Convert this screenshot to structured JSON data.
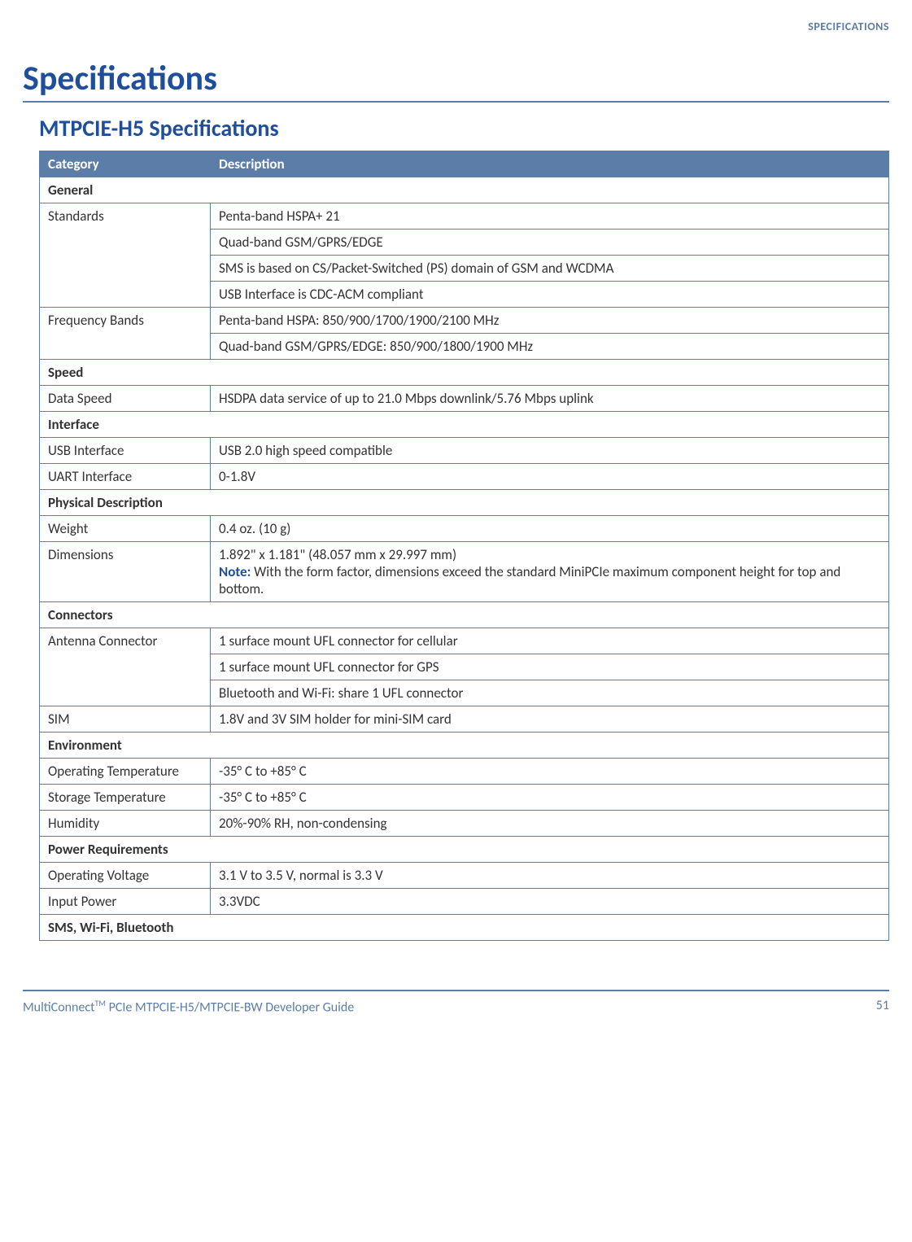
{
  "headerRight": "SPECIFICATIONS",
  "title": "Specifications",
  "subtitle": "MTPCIE-H5 Specifications",
  "columns": [
    "Category",
    "Description"
  ],
  "colors": {
    "accent": "#1f4e9b",
    "tableBorder": "#5b7da8",
    "headerBg": "#5b7da8",
    "headerText": "#ffffff"
  },
  "sections": [
    {
      "heading": "General",
      "rows": [
        {
          "cat": "Standards",
          "vals": [
            "Penta-band HSPA+ 21",
            "Quad-band GSM/GPRS/EDGE",
            "SMS is based on CS/Packet-Switched (PS) domain of GSM and WCDMA",
            "USB Interface is CDC-ACM compliant"
          ]
        },
        {
          "cat": "Frequency Bands",
          "vals": [
            "Penta-band HSPA: 850/900/1700/1900/2100 MHz",
            "Quad-band GSM/GPRS/EDGE: 850/900/1800/1900 MHz"
          ]
        }
      ]
    },
    {
      "heading": "Speed",
      "rows": [
        {
          "cat": "Data Speed",
          "vals": [
            "HSDPA data service of up to 21.0 Mbps downlink/5.76 Mbps uplink"
          ]
        }
      ]
    },
    {
      "heading": "Interface",
      "rows": [
        {
          "cat": "USB Interface",
          "vals": [
            "USB 2.0 high speed compatible"
          ]
        },
        {
          "cat": "UART Interface",
          "vals": [
            "0-1.8V"
          ]
        }
      ]
    },
    {
      "heading": "Physical Description",
      "rows": [
        {
          "cat": "Weight",
          "vals": [
            "0.4 oz. (10 g)"
          ]
        },
        {
          "cat": "Dimensions",
          "vals": [
            "1.892\" x 1.181\" (48.057 mm x 29.997 mm)"
          ],
          "noteLabel": "Note:",
          "noteText": " With the form factor, dimensions exceed the standard MiniPCIe maximum component height for top and bottom."
        }
      ]
    },
    {
      "heading": "Connectors",
      "rows": [
        {
          "cat": "Antenna Connector",
          "vals": [
            "1 surface mount UFL connector for cellular",
            "1 surface mount UFL connector for GPS",
            "Bluetooth and Wi-Fi: share 1 UFL connector"
          ]
        },
        {
          "cat": "SIM",
          "vals": [
            "1.8V and 3V SIM holder for mini-SIM card"
          ]
        }
      ]
    },
    {
      "heading": "Environment",
      "rows": [
        {
          "cat": "Operating Temperature",
          "vals": [
            "-35° C to +85° C"
          ]
        },
        {
          "cat": "Storage Temperature",
          "vals": [
            "-35° C to +85° C"
          ]
        },
        {
          "cat": "Humidity",
          "vals": [
            "20%-90% RH, non-condensing"
          ]
        }
      ]
    },
    {
      "heading": "Power Requirements",
      "rows": [
        {
          "cat": "Operating Voltage",
          "vals": [
            "3.1 V to 3.5 V, normal is 3.3 V"
          ]
        },
        {
          "cat": "Input Power",
          "vals": [
            "3.3VDC"
          ]
        }
      ]
    },
    {
      "heading": "SMS, Wi-Fi, Bluetooth",
      "rows": []
    }
  ],
  "footer": {
    "leftPrefix": "MultiConnect",
    "tm": "TM",
    "leftSuffix": " PCIe MTPCIE-H5/MTPCIE-BW Developer Guide",
    "page": "51"
  }
}
